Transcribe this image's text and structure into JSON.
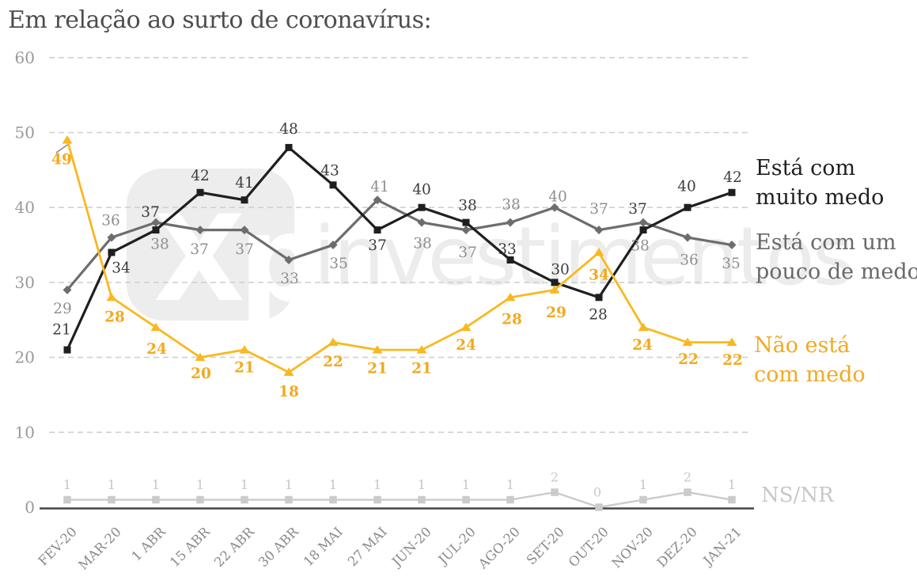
{
  "title": "Em relação ao surto de coronavírus:",
  "watermark": {
    "logo": "Xp",
    "name": "investimentos"
  },
  "colors": {
    "background": "#ffffff",
    "title": "#4e4e4e",
    "grid": "#d0d0d0",
    "axis": "#454545",
    "y_tick_labels": "#999999",
    "x_tick_labels": "#8a8a8a",
    "muito_medo": "#1f1f1f",
    "pouco_medo": "#6d6d6d",
    "nao_esta": "#F9B81F",
    "nsnr": "#cbcbcb"
  },
  "chart_data": {
    "type": "line",
    "title": "Em relação ao surto de coronavírus:",
    "categories": [
      "FEV-20",
      "MAR-20",
      "1 ABR",
      "15 ABR",
      "22 ABR",
      "30 ABR",
      "18 MAI",
      "27 MAI",
      "JUN-20",
      "JUL-20",
      "AGO-20",
      "SET-20",
      "OUT-20",
      "NOV-20",
      "DEZ-20",
      "JAN-21"
    ],
    "ylim": [
      0,
      60
    ],
    "y_ticks": [
      0,
      10,
      20,
      30,
      40,
      50,
      60
    ],
    "grid": "horizontal-dashed",
    "legend_position": "right",
    "series": [
      {
        "name": "Está com muito medo",
        "legend_lines": [
          "Está com",
          "muito medo"
        ],
        "marker": "square",
        "color": "#1f1f1f",
        "label_color": "#3c3c3c",
        "values": [
          21,
          34,
          37,
          42,
          41,
          48,
          43,
          37,
          40,
          38,
          33,
          30,
          28,
          37,
          40,
          42
        ],
        "label_offsets": [
          [
            -7,
            -26
          ],
          [
            12,
            19
          ],
          [
            -7,
            -23
          ],
          [
            0,
            -22
          ],
          [
            0,
            -22
          ],
          [
            0,
            -24
          ],
          [
            -4,
            -19
          ],
          [
            0,
            19
          ],
          [
            0,
            -23
          ],
          [
            2,
            -22
          ],
          [
            -4,
            -14
          ],
          [
            7,
            -17
          ],
          [
            -1,
            21
          ],
          [
            -7,
            -27
          ],
          [
            -1,
            -27
          ],
          [
            1,
            -20
          ]
        ]
      },
      {
        "name": "Está com um pouco de medo",
        "legend_lines": [
          "Está com um",
          "pouco de medo"
        ],
        "marker": "diamond",
        "color": "#6d6d6d",
        "label_color": "#8f8f8f",
        "values": [
          29,
          36,
          38,
          37,
          37,
          33,
          35,
          41,
          38,
          37,
          38,
          40,
          37,
          38,
          36,
          35
        ],
        "label_offsets": [
          [
            -6,
            23
          ],
          [
            -1,
            -22
          ],
          [
            5,
            27
          ],
          [
            -1,
            24
          ],
          [
            0,
            24
          ],
          [
            1,
            23
          ],
          [
            7,
            23
          ],
          [
            3,
            -17
          ],
          [
            1,
            26
          ],
          [
            2,
            28
          ],
          [
            1,
            -23
          ],
          [
            4,
            -14
          ],
          [
            0,
            -27
          ],
          [
            -4,
            29
          ],
          [
            2,
            28
          ],
          [
            -1,
            23
          ]
        ]
      },
      {
        "name": "Não está com medo",
        "legend_lines": [
          "Não está",
          "com medo"
        ],
        "marker": "triangle",
        "color": "#F9B81F",
        "label_color": "#F1AA1F",
        "label_bold": true,
        "values": [
          49,
          28,
          24,
          20,
          21,
          18,
          22,
          21,
          21,
          24,
          28,
          29,
          34,
          24,
          22,
          22
        ],
        "label_offsets": [
          [
            -7,
            24
          ],
          [
            4,
            24
          ],
          [
            1,
            27
          ],
          [
            1,
            20
          ],
          [
            0,
            22
          ],
          [
            0,
            24
          ],
          [
            0,
            24
          ],
          [
            0,
            23
          ],
          [
            0,
            23
          ],
          [
            0,
            22
          ],
          [
            2,
            27
          ],
          [
            2,
            28
          ],
          [
            0,
            28
          ],
          [
            -1,
            22
          ],
          [
            1,
            21
          ],
          [
            1,
            22
          ]
        ]
      },
      {
        "name": "NS/NR",
        "legend_lines": [
          "NS/NR"
        ],
        "marker": "square",
        "color": "#cbcbcb",
        "label_color": "#c8c8c8",
        "values": [
          1,
          1,
          1,
          1,
          1,
          1,
          1,
          1,
          1,
          1,
          1,
          2,
          0,
          1,
          2,
          1
        ],
        "label_offsets": [
          [
            0,
            -20
          ],
          [
            0,
            -20
          ],
          [
            0,
            -20
          ],
          [
            0,
            -20
          ],
          [
            0,
            -20
          ],
          [
            0,
            -20
          ],
          [
            0,
            -20
          ],
          [
            0,
            -20
          ],
          [
            0,
            -20
          ],
          [
            0,
            -20
          ],
          [
            0,
            -20
          ],
          [
            0,
            -20
          ],
          [
            -2,
            -20
          ],
          [
            0,
            -20
          ],
          [
            0,
            -20
          ],
          [
            0,
            -20
          ]
        ]
      }
    ]
  }
}
